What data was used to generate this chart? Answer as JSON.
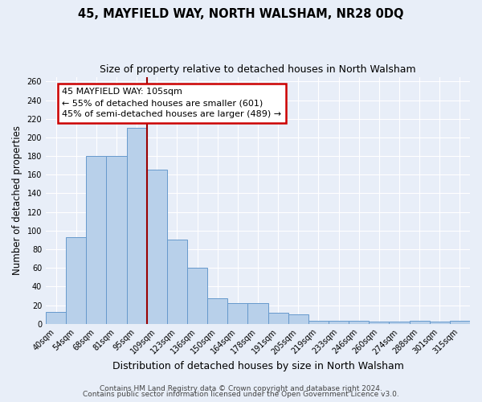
{
  "title": "45, MAYFIELD WAY, NORTH WALSHAM, NR28 0DQ",
  "subtitle": "Size of property relative to detached houses in North Walsham",
  "xlabel": "Distribution of detached houses by size in North Walsham",
  "ylabel": "Number of detached properties",
  "bar_labels": [
    "40sqm",
    "54sqm",
    "68sqm",
    "81sqm",
    "95sqm",
    "109sqm",
    "123sqm",
    "136sqm",
    "150sqm",
    "164sqm",
    "178sqm",
    "191sqm",
    "205sqm",
    "219sqm",
    "233sqm",
    "246sqm",
    "260sqm",
    "274sqm",
    "288sqm",
    "301sqm",
    "315sqm"
  ],
  "bar_heights": [
    13,
    93,
    180,
    180,
    210,
    165,
    90,
    60,
    27,
    22,
    22,
    12,
    10,
    3,
    3,
    3,
    2,
    2,
    3,
    2,
    3
  ],
  "bar_color": "#b8d0ea",
  "bar_edge_color": "#6699cc",
  "vline_x_index": 5,
  "vline_color": "#990000",
  "annotation_title": "45 MAYFIELD WAY: 105sqm",
  "annotation_line1": "← 55% of detached houses are smaller (601)",
  "annotation_line2": "45% of semi-detached houses are larger (489) →",
  "annotation_box_facecolor": "#ffffff",
  "annotation_box_edgecolor": "#cc0000",
  "ylim": [
    0,
    265
  ],
  "yticks": [
    0,
    20,
    40,
    60,
    80,
    100,
    120,
    140,
    160,
    180,
    200,
    220,
    240,
    260
  ],
  "footer1": "Contains HM Land Registry data © Crown copyright and database right 2024.",
  "footer2": "Contains public sector information licensed under the Open Government Licence v3.0.",
  "bg_color": "#e8eef8",
  "plot_bg_color": "#e8eef8",
  "grid_color": "#ffffff",
  "title_fontsize": 10.5,
  "subtitle_fontsize": 9,
  "xlabel_fontsize": 9,
  "ylabel_fontsize": 8.5,
  "tick_fontsize": 7,
  "annot_fontsize": 8,
  "footer_fontsize": 6.5
}
